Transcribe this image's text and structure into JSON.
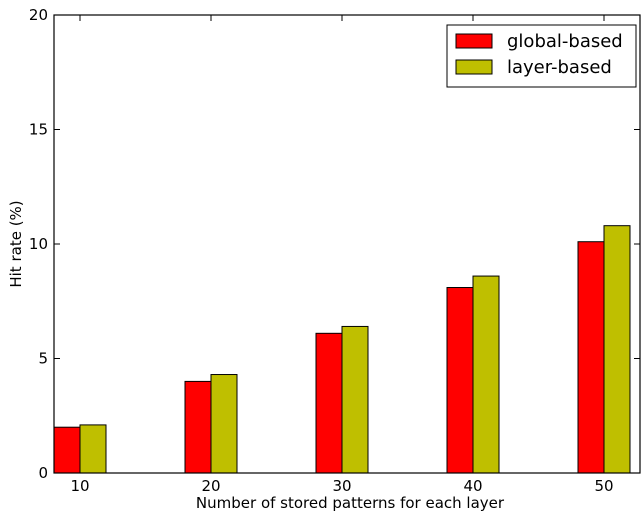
{
  "chart_data": {
    "type": "bar",
    "categories": [
      "10",
      "20",
      "30",
      "40",
      "50"
    ],
    "series": [
      {
        "name": "global-based",
        "values": [
          2.0,
          4.0,
          6.1,
          8.1,
          10.1
        ],
        "color": "#ff0000"
      },
      {
        "name": "layer-based",
        "values": [
          2.1,
          4.3,
          6.4,
          8.6,
          10.8
        ],
        "color": "#bfbf00"
      }
    ],
    "title": "",
    "xlabel": "Number of stored patterns for each layer",
    "ylabel": "Hit rate (%)",
    "ylim": [
      0,
      20
    ],
    "yticks": [
      "0",
      "5",
      "10",
      "15",
      "20"
    ],
    "grid": false,
    "legend_position": "top-right"
  }
}
